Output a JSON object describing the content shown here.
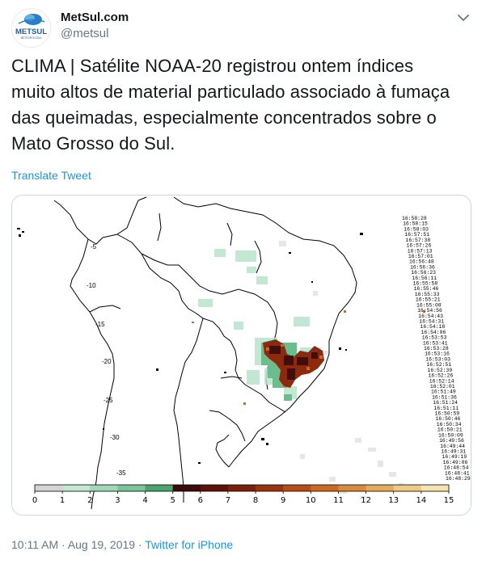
{
  "account": {
    "display_name": "MetSul.com",
    "handle": "@metsul",
    "logo_text": "METSUL",
    "logo_subtext": "METEOROLOGIA"
  },
  "tweet": {
    "text": "CLIMA | Satélite NOAA-20 registrou ontem índices muito altos de material particulado associado à fumaça das queimadas, especialmente concentrados sobre o Mato Grosso do Sul.",
    "lines": [
      "CLIMA | Satélite NOAA-20 registrou ontem índices",
      "muito altos de material particulado associado à fumaça",
      "das queimadas, especialmente concentrados sobre o",
      "Mato Grosso do Sul."
    ],
    "translate_label": "Translate Tweet",
    "timestamp": "10:11 AM · Aug 19, 2019",
    "separator": " · ",
    "source": "Twitter for iPhone"
  },
  "map": {
    "latitude_labels": [
      "-5",
      "-10",
      "-15",
      "-20",
      "-25",
      "-30",
      "-35"
    ],
    "scan_times": [
      "16:58:28",
      "16:58:15",
      "16:58:03",
      "16:57:51",
      "16:57:38",
      "16:57:26",
      "16:57:13",
      "16:57:01",
      "16:56:48",
      "16:56:36",
      "16:56:23",
      "16:56:11",
      "16:55:58",
      "16:55:46",
      "16:55:33",
      "16:55:21",
      "16:55:08",
      "16:54:56",
      "16:54:43",
      "16:54:31",
      "16:54:18",
      "16:54:06",
      "16:53:53",
      "16:53:41",
      "16:53:28",
      "16:53:16",
      "16:53:03",
      "16:52:51",
      "16:52:39",
      "16:52:26",
      "16:52:14",
      "16:52:01",
      "16:51:49",
      "16:51:36",
      "16:51:24",
      "16:51:11",
      "16:50:59",
      "16:50:46",
      "16:50:34",
      "16:50:21",
      "16:50:09",
      "16:49:56",
      "16:49:44",
      "16:49:31",
      "16:49:19",
      "16:49:06",
      "16:48:54",
      "16:48:41",
      "16:48:29"
    ],
    "colorbar": {
      "tick_labels": [
        "0",
        "1",
        "2",
        "3",
        "4",
        "5",
        "6",
        "7",
        "8",
        "9",
        "10",
        "11",
        "12",
        "13",
        "14",
        "15"
      ],
      "colors": [
        "#e6e6e6",
        "#d4d4d4",
        "#c2e6d2",
        "#9fd7b8",
        "#7cc39a",
        "#4aa36a",
        "#3b0a0a",
        "#5c1208",
        "#7a1f0c",
        "#9a3410",
        "#b84d16",
        "#cc6a22",
        "#d98a3a",
        "#e4ab5e",
        "#eeca86",
        "#f6e4b0"
      ]
    },
    "colors": {
      "coast": "#000000",
      "smoke_low": "#a8dcc0",
      "smoke_mid": "#4aa36a",
      "smoke_high": "#7a1f0c",
      "smoke_core": "#3b0a0a"
    }
  }
}
